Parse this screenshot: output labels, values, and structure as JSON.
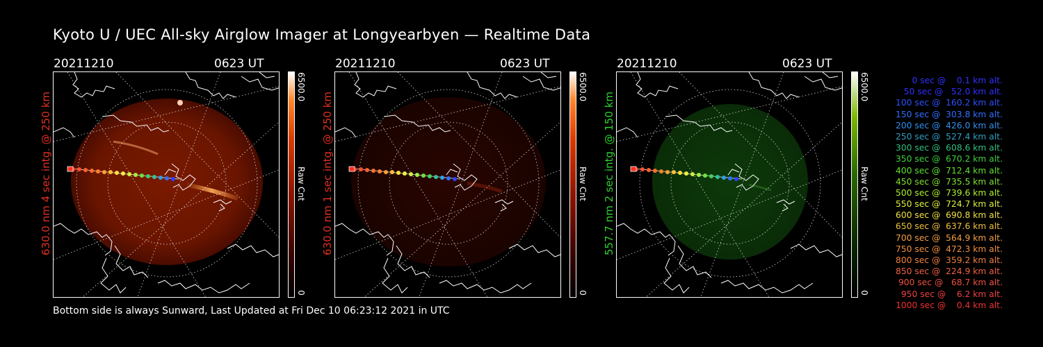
{
  "title": "Kyoto U / UEC All-sky Airglow Imager at Longyearbyen — Realtime Data",
  "panels": [
    {
      "date": "20211210",
      "time": "0623 UT",
      "label": "630.0 nm 4 sec intg. @ 250 km",
      "label_color": "#e03020",
      "cb_max": "6500.0",
      "cb_min": "0",
      "cb_unit": "Raw Cnt",
      "colormap": "red"
    },
    {
      "date": "20211210",
      "time": "0623 UT",
      "label": "630.0 nm 1 sec intg. @ 250 km",
      "label_color": "#e03020",
      "cb_max": "6500.0",
      "cb_min": "0",
      "cb_unit": "Raw Cnt",
      "colormap": "red"
    },
    {
      "date": "20211210",
      "time": "0623 UT",
      "label": "557.7 nm 2 sec intg. @ 150 km",
      "label_color": "#30d030",
      "cb_max": "6500.0",
      "cb_min": "0",
      "cb_unit": "Raw Cnt",
      "colormap": "green"
    }
  ],
  "footer": "Bottom side is always Sunward, Last Updated at Fri Dec 10 06:23:12 2021 in UTC",
  "legend": [
    {
      "text": "   0 sec @    0.1 km alt.",
      "color": "#3030ff"
    },
    {
      "text": "  50 sec @   52.0 km alt.",
      "color": "#3030ff"
    },
    {
      "text": " 100 sec @  160.2 km alt.",
      "color": "#3050ff"
    },
    {
      "text": " 150 sec @  303.8 km alt.",
      "color": "#3070ff"
    },
    {
      "text": " 200 sec @  426.0 km alt.",
      "color": "#3090f0"
    },
    {
      "text": " 250 sec @  527.4 km alt.",
      "color": "#30a0c0"
    },
    {
      "text": " 300 sec @  608.6 km alt.",
      "color": "#30c080"
    },
    {
      "text": " 350 sec @  670.2 km alt.",
      "color": "#40d040"
    },
    {
      "text": " 400 sec @  712.4 km alt.",
      "color": "#60e030"
    },
    {
      "text": " 450 sec @  735.5 km alt.",
      "color": "#80e030"
    },
    {
      "text": " 500 sec @  739.6 km alt.",
      "color": "#b0f030"
    },
    {
      "text": " 550 sec @  724.7 km alt.",
      "color": "#e0f040"
    },
    {
      "text": " 600 sec @  690.8 km alt.",
      "color": "#f0e040"
    },
    {
      "text": " 650 sec @  637.6 km alt.",
      "color": "#f0c040"
    },
    {
      "text": " 700 sec @  564.9 km alt.",
      "color": "#f0a040"
    },
    {
      "text": " 750 sec @  472.3 km alt.",
      "color": "#f09040"
    },
    {
      "text": " 800 sec @  359.2 km alt.",
      "color": "#f08040"
    },
    {
      "text": " 850 sec @  224.9 km alt.",
      "color": "#f06040"
    },
    {
      "text": " 900 sec @   68.7 km alt.",
      "color": "#f05040"
    },
    {
      "text": " 950 sec @    6.2 km alt.",
      "color": "#f04040"
    },
    {
      "text": "1000 sec @    0.4 km alt.",
      "color": "#f03030"
    }
  ]
}
